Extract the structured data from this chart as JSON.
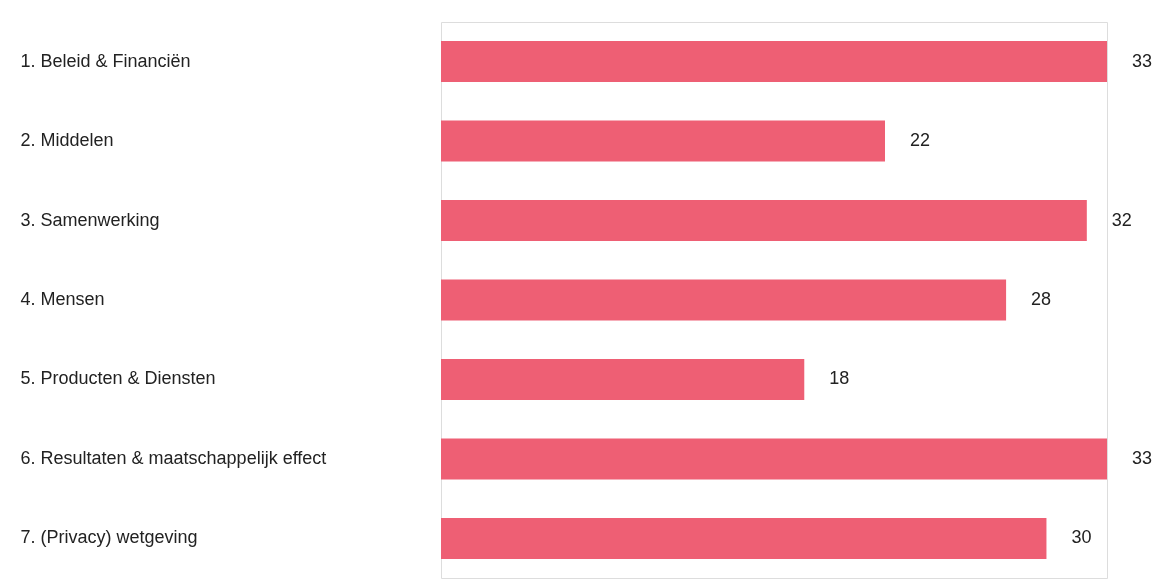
{
  "chart_data": {
    "type": "bar",
    "orientation": "horizontal",
    "data_labels": true,
    "categories": [
      "1. Beleid & Financiën",
      "2. Middelen",
      "3. Samenwerking",
      "4. Mensen",
      "5. Producten & Diensten",
      "6. Resultaten & maatschappelijk effect",
      "7. (Privacy) wetgeving"
    ],
    "values": [
      33,
      22,
      32,
      28,
      18,
      33,
      30
    ],
    "color": "#ee5f74"
  }
}
